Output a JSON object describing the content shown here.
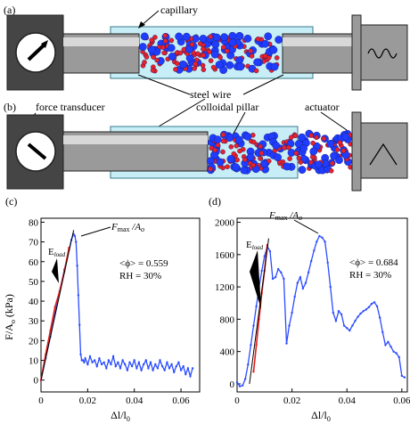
{
  "panels": {
    "a": {
      "letter": "(a)",
      "labels": {
        "capillary": "capillary",
        "steel_wire": "steel wire"
      }
    },
    "b": {
      "letter": "(b)",
      "labels": {
        "force_transducer": "force transducer",
        "colloidal_pillar": "colloidal pillar",
        "actuator": "actuator"
      }
    }
  },
  "chart_data": [
    {
      "panel": "(c)",
      "type": "line",
      "xlabel": "Δl/l0",
      "ylabel": "F/A0 (kPa)",
      "xlim": [
        0,
        0.068
      ],
      "ylim": [
        -6,
        82
      ],
      "xticks": [
        0,
        0.02,
        0.04,
        0.06
      ],
      "xtick_labels": [
        "0",
        "0.02",
        "0.04",
        "0.06"
      ],
      "yticks": [
        0,
        10,
        20,
        30,
        40,
        50,
        60,
        70,
        80
      ],
      "ytick_labels": [
        "0",
        "10",
        "20",
        "30",
        "40",
        "50",
        "60",
        "70",
        "80"
      ],
      "annotations": {
        "peak": "Fmax/A0",
        "eload": "Eload",
        "phi": "<ϕ> = 0.559",
        "rh": "RH = 30%"
      },
      "series": [
        {
          "color": "#2b4cff",
          "x": [
            0.0,
            0.002,
            0.004,
            0.006,
            0.008,
            0.01,
            0.012,
            0.013,
            0.014,
            0.0145,
            0.015,
            0.0155,
            0.016,
            0.0165,
            0.017,
            0.0175,
            0.018,
            0.0185,
            0.019,
            0.02,
            0.021,
            0.022,
            0.023,
            0.024,
            0.025,
            0.026,
            0.027,
            0.028,
            0.029,
            0.03,
            0.031,
            0.032,
            0.033,
            0.034,
            0.035,
            0.036,
            0.037,
            0.038,
            0.039,
            0.04,
            0.041,
            0.042,
            0.043,
            0.044,
            0.045,
            0.046,
            0.047,
            0.048,
            0.049,
            0.05,
            0.051,
            0.052,
            0.053,
            0.054,
            0.055,
            0.056,
            0.057,
            0.058,
            0.059,
            0.06,
            0.061,
            0.062,
            0.063,
            0.064,
            0.065
          ],
          "y": [
            0,
            11,
            22,
            34,
            45,
            56,
            66,
            71,
            74,
            73,
            70,
            58,
            43,
            28,
            13,
            10,
            10,
            9,
            11,
            8,
            12,
            9,
            10,
            7,
            11,
            8,
            9,
            6,
            10,
            8,
            12,
            7,
            9,
            6,
            10,
            8,
            5,
            9,
            7,
            10,
            6,
            9,
            5,
            8,
            10,
            6,
            9,
            5,
            8,
            6,
            10,
            7,
            5,
            9,
            6,
            8,
            4,
            7,
            9,
            5,
            7,
            3,
            6,
            2,
            6
          ]
        },
        {
          "color": "#e0201b",
          "x": [
            0.0,
            0.002,
            0.004,
            0.006,
            0.008,
            0.01,
            0.012
          ],
          "y": [
            0,
            13,
            25,
            37,
            45,
            55,
            67
          ]
        }
      ],
      "fit_line": {
        "color": "#000000",
        "x": [
          0.0,
          0.014
        ],
        "y": [
          0,
          76
        ]
      }
    },
    {
      "panel": "(d)",
      "type": "scatter",
      "xlabel": "Δl/l0",
      "ylabel": "",
      "xlim": [
        0,
        0.062
      ],
      "ylim": [
        -100,
        2050
      ],
      "xticks": [
        0,
        0.02,
        0.04,
        0.06
      ],
      "xtick_labels": [
        "0",
        "0.02",
        "0.04",
        "0.06"
      ],
      "yticks": [
        0,
        400,
        800,
        1200,
        1600,
        2000
      ],
      "ytick_labels": [
        "0",
        "400",
        "800",
        "1200",
        "1600",
        "2000"
      ],
      "annotations": {
        "peak": "Fmax/A0",
        "eload": "Eload",
        "phi": "<ϕ> = 0.684",
        "rh": "RH = 30%"
      },
      "series": [
        {
          "color": "#2b4cff",
          "x": [
            0.0,
            0.001,
            0.002,
            0.003,
            0.004,
            0.005,
            0.006,
            0.007,
            0.008,
            0.009,
            0.01,
            0.011,
            0.012,
            0.013,
            0.014,
            0.015,
            0.016,
            0.017,
            0.018,
            0.019,
            0.02,
            0.021,
            0.022,
            0.023,
            0.024,
            0.025,
            0.026,
            0.027,
            0.028,
            0.029,
            0.03,
            0.031,
            0.032,
            0.033,
            0.034,
            0.035,
            0.036,
            0.037,
            0.038,
            0.039,
            0.04,
            0.041,
            0.042,
            0.043,
            0.044,
            0.045,
            0.046,
            0.047,
            0.048,
            0.049,
            0.05,
            0.051,
            0.052,
            0.053,
            0.054,
            0.055,
            0.056,
            0.057,
            0.058,
            0.059,
            0.06,
            0.061
          ],
          "y": [
            20,
            -30,
            -20,
            60,
            240,
            480,
            720,
            960,
            1190,
            1400,
            1580,
            1700,
            1640,
            1300,
            1320,
            1420,
            1380,
            1300,
            500,
            720,
            880,
            1080,
            1250,
            1320,
            1180,
            1250,
            1380,
            1520,
            1650,
            1760,
            1830,
            1810,
            1760,
            1500,
            1200,
            880,
            780,
            900,
            860,
            720,
            690,
            660,
            720,
            780,
            830,
            870,
            900,
            920,
            950,
            990,
            1010,
            960,
            820,
            640,
            480,
            520,
            460,
            400,
            380,
            330,
            100,
            80
          ]
        },
        {
          "color": "#e0201b",
          "x": [
            0.006,
            0.007,
            0.008,
            0.009,
            0.01,
            0.011
          ],
          "y": [
            150,
            480,
            800,
            1120,
            1400,
            1720
          ]
        }
      ],
      "fit_line": {
        "color": "#000000",
        "x": [
          0.0045,
          0.0115
        ],
        "y": [
          0,
          1800
        ]
      }
    }
  ]
}
